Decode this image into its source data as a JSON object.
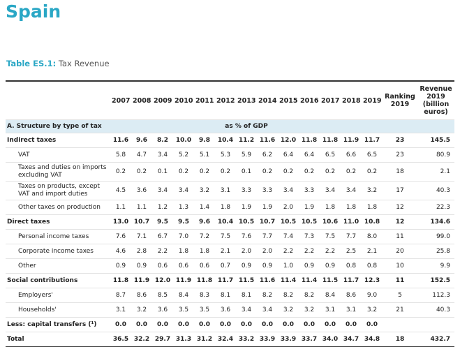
{
  "title": "Spain",
  "caption": {
    "label": "Table ES.1:",
    "text": "Tax Revenue"
  },
  "table": {
    "columns": [
      "2007",
      "2008",
      "2009",
      "2010",
      "2011",
      "2012",
      "2013",
      "2014",
      "2015",
      "2016",
      "2017",
      "2018",
      "2019",
      "Ranking 2019",
      "Revenue 2019 (billion euros)"
    ],
    "section": {
      "label": "A. Structure by type of tax",
      "unit": "as % of GDP"
    },
    "rows": [
      {
        "label": "Indirect taxes",
        "bold": true,
        "values": [
          "11.6",
          "9.6",
          "8.2",
          "10.0",
          "9.8",
          "10.4",
          "11.2",
          "11.6",
          "12.0",
          "11.8",
          "11.8",
          "11.9",
          "11.7"
        ],
        "ranking": "23",
        "revenue": "145.5"
      },
      {
        "label": "VAT",
        "bold": false,
        "values": [
          "5.8",
          "4.7",
          "3.4",
          "5.2",
          "5.1",
          "5.3",
          "5.9",
          "6.2",
          "6.4",
          "6.4",
          "6.5",
          "6.6",
          "6.5"
        ],
        "ranking": "23",
        "revenue": "80.9"
      },
      {
        "label": "Taxes and duties on imports excluding VAT",
        "bold": false,
        "values": [
          "0.2",
          "0.2",
          "0.1",
          "0.2",
          "0.2",
          "0.2",
          "0.1",
          "0.2",
          "0.2",
          "0.2",
          "0.2",
          "0.2",
          "0.2"
        ],
        "ranking": "18",
        "revenue": "2.1"
      },
      {
        "label": "Taxes on products, except VAT and import duties",
        "bold": false,
        "values": [
          "4.5",
          "3.6",
          "3.4",
          "3.4",
          "3.2",
          "3.1",
          "3.3",
          "3.3",
          "3.4",
          "3.3",
          "3.4",
          "3.4",
          "3.2"
        ],
        "ranking": "17",
        "revenue": "40.3"
      },
      {
        "label": "Other taxes on production",
        "bold": false,
        "values": [
          "1.1",
          "1.1",
          "1.2",
          "1.3",
          "1.4",
          "1.8",
          "1.9",
          "1.9",
          "2.0",
          "1.9",
          "1.8",
          "1.8",
          "1.8"
        ],
        "ranking": "12",
        "revenue": "22.3"
      },
      {
        "label": "Direct taxes",
        "bold": true,
        "values": [
          "13.0",
          "10.7",
          "9.5",
          "9.5",
          "9.6",
          "10.4",
          "10.5",
          "10.7",
          "10.5",
          "10.5",
          "10.6",
          "11.0",
          "10.8"
        ],
        "ranking": "12",
        "revenue": "134.6"
      },
      {
        "label": "Personal income taxes",
        "bold": false,
        "values": [
          "7.6",
          "7.1",
          "6.7",
          "7.0",
          "7.2",
          "7.5",
          "7.6",
          "7.7",
          "7.4",
          "7.3",
          "7.5",
          "7.7",
          "8.0"
        ],
        "ranking": "11",
        "revenue": "99.0"
      },
      {
        "label": "Corporate income taxes",
        "bold": false,
        "values": [
          "4.6",
          "2.8",
          "2.2",
          "1.8",
          "1.8",
          "2.1",
          "2.0",
          "2.0",
          "2.2",
          "2.2",
          "2.2",
          "2.5",
          "2.1"
        ],
        "ranking": "20",
        "revenue": "25.8"
      },
      {
        "label": "Other",
        "bold": false,
        "values": [
          "0.9",
          "0.9",
          "0.6",
          "0.6",
          "0.6",
          "0.7",
          "0.9",
          "0.9",
          "1.0",
          "0.9",
          "0.9",
          "0.8",
          "0.8"
        ],
        "ranking": "10",
        "revenue": "9.9"
      },
      {
        "label": "Social contributions",
        "bold": true,
        "values": [
          "11.8",
          "11.9",
          "12.0",
          "11.9",
          "11.8",
          "11.7",
          "11.5",
          "11.6",
          "11.4",
          "11.4",
          "11.5",
          "11.7",
          "12.3"
        ],
        "ranking": "11",
        "revenue": "152.5"
      },
      {
        "label": "Employers'",
        "bold": false,
        "values": [
          "8.7",
          "8.6",
          "8.5",
          "8.4",
          "8.3",
          "8.1",
          "8.1",
          "8.2",
          "8.2",
          "8.2",
          "8.4",
          "8.6",
          "9.0"
        ],
        "ranking": "5",
        "revenue": "112.3"
      },
      {
        "label": "Households'",
        "bold": false,
        "values": [
          "3.1",
          "3.2",
          "3.6",
          "3.5",
          "3.5",
          "3.6",
          "3.4",
          "3.4",
          "3.2",
          "3.2",
          "3.1",
          "3.1",
          "3.2"
        ],
        "ranking": "21",
        "revenue": "40.3"
      },
      {
        "label": "Less: capital transfers (¹)",
        "bold": true,
        "values": [
          "0.0",
          "0.0",
          "0.0",
          "0.0",
          "0.0",
          "0.0",
          "0.0",
          "0.0",
          "0.0",
          "0.0",
          "0.0",
          "0.0",
          "0.0"
        ],
        "ranking": null,
        "revenue": null
      },
      {
        "label": "Total",
        "bold": true,
        "values": [
          "36.5",
          "32.2",
          "29.7",
          "31.3",
          "31.2",
          "32.4",
          "33.2",
          "33.9",
          "33.9",
          "33.7",
          "34.0",
          "34.7",
          "34.8"
        ],
        "ranking": "18",
        "revenue": "432.7"
      }
    ]
  }
}
